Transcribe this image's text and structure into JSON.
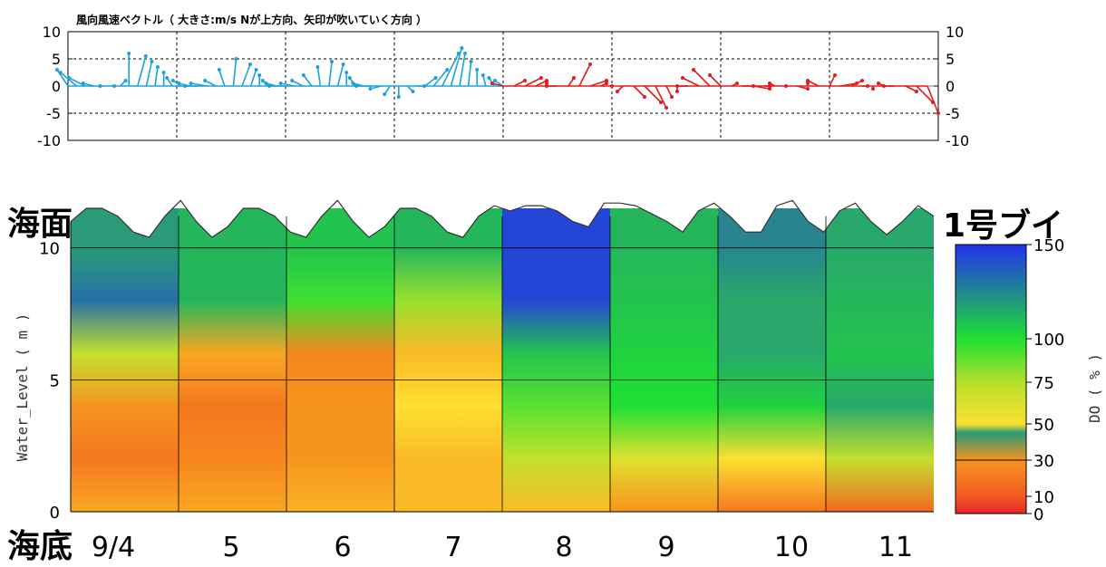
{
  "chart_data": [
    {
      "type": "line",
      "title": "風向風速ベクトル（ 大きさ:m/s Nが上方向、矢印が吹いていく方向 ）",
      "ylim": [
        -10,
        10
      ],
      "y_ticks": [
        "10",
        "5",
        "0",
        "-5",
        "-10"
      ],
      "grid": true,
      "series": [
        {
          "color": "#1ba3d9",
          "x": [
            0.0,
            0.08,
            0.16,
            0.24,
            0.32,
            0.4,
            0.48,
            0.56,
            0.64,
            0.72,
            0.8,
            0.88,
            0.96,
            1.04,
            1.12,
            1.2,
            1.28,
            1.36,
            1.44,
            1.52,
            1.6,
            1.68,
            1.76,
            1.84,
            1.92,
            2.0,
            2.08,
            2.16,
            2.24,
            2.32,
            2.4,
            2.48,
            2.56,
            2.64,
            2.72,
            2.8,
            2.88,
            2.96,
            3.04,
            3.12,
            3.2,
            3.28,
            3.36,
            3.44,
            3.52,
            3.6,
            3.68,
            3.76,
            3.84,
            3.92,
            4.0
          ],
          "u": [
            -2,
            -3,
            -3,
            -2,
            -0.5,
            0.5,
            1,
            0,
            1.5,
            1,
            0.5,
            0,
            -1,
            -1.5,
            -2,
            -2.5,
            -3,
            -2,
            -1,
            0.5,
            1.5,
            1,
            0,
            -1,
            -2,
            -3,
            -2.5,
            -2,
            -1.5,
            -0.5,
            0.5,
            1,
            0,
            -1,
            -2,
            -3,
            -2,
            -1,
            0,
            1,
            1.5,
            2,
            2.5,
            3,
            2,
            1,
            0.5,
            0,
            -0.5,
            -1,
            -1.5
          ],
          "v": [
            3,
            2.5,
            1.5,
            0.5,
            0,
            0,
            1,
            6,
            5.5,
            4.5,
            3.5,
            2.5,
            1.5,
            1,
            0.5,
            0,
            0.5,
            1,
            3,
            5,
            4,
            3,
            2,
            1,
            0.5,
            0,
            0.5,
            1,
            2,
            3.5,
            4.5,
            4,
            2.5,
            1.5,
            0.5,
            0,
            -0.5,
            -1.5,
            -2,
            -1,
            0,
            1.5,
            3,
            6,
            7,
            6,
            4.5,
            3,
            2,
            1.5,
            1
          ]
        },
        {
          "color": "#e31a1c",
          "x": [
            4.0,
            4.1,
            4.2,
            4.3,
            4.4,
            4.5,
            4.6,
            4.7,
            4.8,
            4.9,
            5.0,
            5.1,
            5.2,
            5.3,
            5.4,
            5.5,
            5.6,
            5.7,
            5.8,
            5.9,
            6.0,
            6.1,
            6.2,
            6.3,
            6.4,
            6.5,
            6.6,
            6.7,
            6.8,
            6.9,
            7.0,
            7.1,
            7.2,
            7.3,
            7.4,
            7.5,
            7.6,
            7.7,
            7.8,
            7.9
          ],
          "u": [
            -2,
            2,
            3,
            2,
            0,
            -2,
            1,
            2,
            3,
            1,
            0,
            -1,
            2,
            3,
            2,
            1,
            0,
            -2,
            -3,
            -3,
            -2,
            1,
            2,
            3,
            1,
            -1,
            0,
            2,
            0,
            -2,
            1,
            3,
            2,
            1,
            0,
            -1,
            -2,
            2,
            3,
            2
          ],
          "v": [
            0.5,
            1,
            1.5,
            1,
            0.5,
            0,
            1.5,
            4,
            1,
            0.5,
            0,
            -1,
            -2,
            -3,
            -4,
            -2,
            -1,
            0,
            1.5,
            3,
            2,
            0.5,
            0,
            -0.5,
            0,
            0.5,
            0,
            -0.5,
            0.5,
            1,
            2,
            0.5,
            1,
            0,
            -0.5,
            0.5,
            0,
            -1,
            -3,
            -5
          ]
        }
      ]
    },
    {
      "type": "heatmap",
      "ylabel": "Water_Level ( m )",
      "ylim": [
        0,
        11.5
      ],
      "y_ticks": [
        0,
        5,
        10
      ],
      "x_categories": [
        "9/4",
        "5",
        "6",
        "7",
        "8",
        "9",
        "10",
        "11"
      ],
      "colorbar": {
        "label": "DO ( % )",
        "ticks": [
          "150",
          "100",
          "75",
          "50",
          "30",
          "10",
          "0"
        ],
        "scale": [
          {
            "value": 0,
            "color": "#e8232a"
          },
          {
            "value": 10,
            "color": "#f15b22"
          },
          {
            "value": 30,
            "color": "#f7941d"
          },
          {
            "value": 50,
            "color": "#fde030"
          },
          {
            "value": 75,
            "color": "#b5e02c"
          },
          {
            "value": 100,
            "color": "#1ee032"
          },
          {
            "value": 125,
            "color": "#2a9a78"
          },
          {
            "value": 150,
            "color": "#2231ee"
          }
        ]
      },
      "surface": [
        11.0,
        11.5,
        11.5,
        11.2,
        10.6,
        10.4,
        11.2,
        11.8,
        11.0,
        10.4,
        10.8,
        11.5,
        11.5,
        11.2,
        10.6,
        10.4,
        11.2,
        11.8,
        11.0,
        10.4,
        10.8,
        11.5,
        11.5,
        11.2,
        10.6,
        10.4,
        11.2,
        11.6,
        11.4,
        11.6,
        11.6,
        11.4,
        11.0,
        10.8,
        11.7,
        11.7,
        11.6,
        11.3,
        11.0,
        10.6,
        11.4,
        11.7,
        11.2,
        10.6,
        10.6,
        11.6,
        11.8,
        11.0,
        10.6,
        11.4,
        11.7,
        11.0,
        10.5,
        11.0,
        11.6,
        11.2
      ],
      "depth_profile": {
        "columns": [
          "9/4",
          "5",
          "6",
          "7",
          "8",
          "9",
          "10",
          "11"
        ],
        "levels_m": [
          0,
          2,
          4,
          6,
          8,
          10,
          11.5
        ],
        "do_percent": [
          [
            35,
            20,
            30,
            70,
            135,
            125,
            125
          ],
          [
            35,
            25,
            20,
            35,
            115,
            115,
            115
          ],
          [
            38,
            30,
            30,
            25,
            95,
            110,
            110
          ],
          [
            40,
            40,
            50,
            40,
            80,
            115,
            115
          ],
          [
            40,
            70,
            90,
            110,
            145,
            145,
            145
          ],
          [
            30,
            60,
            100,
            105,
            110,
            115,
            115
          ],
          [
            20,
            50,
            105,
            120,
            120,
            130,
            130
          ],
          [
            15,
            70,
            120,
            110,
            115,
            120,
            120
          ]
        ]
      }
    }
  ],
  "labels": {
    "surface": "海面",
    "bottom": "海底",
    "buoy": "1号ブイ"
  }
}
